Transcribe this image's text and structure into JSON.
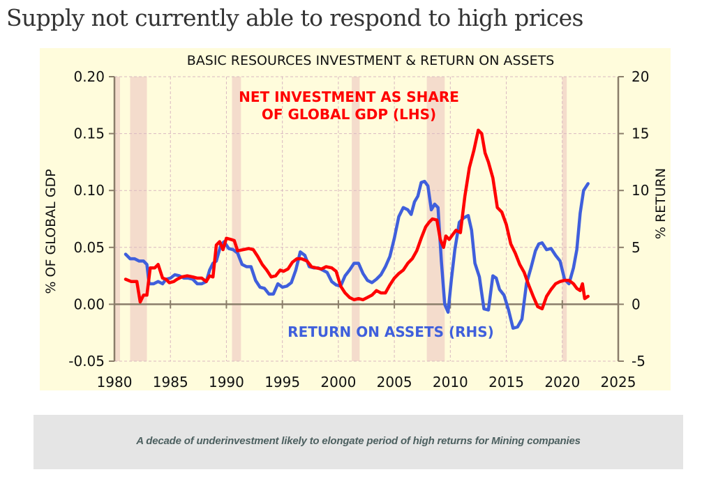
{
  "page": {
    "title": "Supply not currently able to respond to high prices",
    "caption": "A decade of underinvestment likely to elongate period of high returns for Mining companies"
  },
  "colors": {
    "background": "#fffcdc",
    "recession": "#f4dccc",
    "investment": "#ff0000",
    "return": "#3f5fdc",
    "axis": "#8a7d6a",
    "grid": "#d9b8c0",
    "caption_bg": "#e5e5e5",
    "caption_text": "#4d6060"
  },
  "chart_data": {
    "type": "line",
    "title": "BASIC RESOURCES INVESTMENT & RETURN ON ASSETS",
    "xlabel": "",
    "ylabel": "% OF GLOBAL GDP",
    "y2label": "% RETURN",
    "xlim": [
      1980,
      2025
    ],
    "ylim": [
      -0.05,
      0.2
    ],
    "y2lim": [
      -5,
      20
    ],
    "grid": true,
    "xticks": [
      "1980",
      "1985",
      "1990",
      "1995",
      "2000",
      "2005",
      "2010",
      "2015",
      "2020",
      "2025"
    ],
    "xtick_values": [
      1980,
      1985,
      1990,
      1995,
      2000,
      2005,
      2010,
      2015,
      2020,
      2025
    ],
    "yticks": [
      "0.20",
      "0.15",
      "0.10",
      "0.05",
      "0.00",
      "-0.05"
    ],
    "ytick_values": [
      0.2,
      0.15,
      0.1,
      0.05,
      0.0,
      -0.05
    ],
    "y2ticks": [
      "20",
      "15",
      "10",
      "5",
      "0",
      "-5"
    ],
    "y2tick_values": [
      20,
      15,
      10,
      5,
      0,
      -5
    ],
    "recessions": [
      [
        1980.0,
        1980.5
      ],
      [
        1981.4,
        1982.9
      ],
      [
        1990.5,
        1991.3
      ],
      [
        2001.2,
        2001.9
      ],
      [
        2007.9,
        2009.5
      ],
      [
        2020.0,
        2020.4
      ]
    ],
    "annotations": [
      {
        "text": "NET INVESTMENT AS SHARE",
        "series": "investment"
      },
      {
        "text": "OF GLOBAL GDP (LHS)",
        "series": "investment"
      },
      {
        "text": "RETURN ON ASSETS (RHS)",
        "series": "return"
      }
    ],
    "series": [
      {
        "name": "Net investment as share of global GDP (LHS)",
        "axis": "left",
        "color": "#ff0000",
        "x": [
          1981.0,
          1981.5,
          1982.0,
          1982.3,
          1982.6,
          1982.9,
          1983.2,
          1983.6,
          1983.9,
          1984.3,
          1984.6,
          1984.9,
          1985.3,
          1985.6,
          1986.0,
          1986.5,
          1987.0,
          1987.4,
          1987.8,
          1988.2,
          1988.5,
          1988.8,
          1989.1,
          1989.4,
          1989.7,
          1990.0,
          1990.4,
          1990.7,
          1991.0,
          1991.5,
          1992.0,
          1992.4,
          1992.8,
          1993.2,
          1993.6,
          1994.0,
          1994.4,
          1994.8,
          1995.1,
          1995.5,
          1995.9,
          1996.3,
          1996.7,
          1997.2,
          1997.6,
          1998.0,
          1998.5,
          1998.9,
          1999.4,
          1999.8,
          2000.2,
          2000.6,
          2001.0,
          2001.4,
          2001.8,
          2002.2,
          2002.6,
          2003.0,
          2003.4,
          2003.8,
          2004.2,
          2004.6,
          2005.0,
          2005.4,
          2005.8,
          2006.2,
          2006.6,
          2007.0,
          2007.4,
          2007.8,
          2008.1,
          2008.4,
          2008.8,
          2009.1,
          2009.4,
          2009.6,
          2009.9,
          2010.2,
          2010.5,
          2010.9,
          2011.3,
          2011.7,
          2012.1,
          2012.5,
          2012.8,
          2013.1,
          2013.4,
          2013.8,
          2014.2,
          2014.6,
          2015.0,
          2015.4,
          2015.8,
          2016.2,
          2016.6,
          2017.0,
          2017.4,
          2017.8,
          2018.2,
          2018.6,
          2019.0,
          2019.4,
          2019.8,
          2020.2,
          2020.6,
          2021.0,
          2021.3,
          2021.6,
          2021.8,
          2022.0,
          2022.3
        ],
        "values": [
          0.022,
          0.02,
          0.02,
          0.002,
          0.008,
          0.008,
          0.032,
          0.032,
          0.035,
          0.023,
          0.022,
          0.019,
          0.02,
          0.022,
          0.024,
          0.025,
          0.024,
          0.023,
          0.023,
          0.02,
          0.025,
          0.024,
          0.052,
          0.055,
          0.048,
          0.058,
          0.057,
          0.056,
          0.047,
          0.048,
          0.049,
          0.048,
          0.042,
          0.035,
          0.03,
          0.024,
          0.025,
          0.03,
          0.029,
          0.031,
          0.037,
          0.04,
          0.04,
          0.038,
          0.033,
          0.032,
          0.031,
          0.033,
          0.032,
          0.029,
          0.016,
          0.01,
          0.006,
          0.004,
          0.005,
          0.004,
          0.006,
          0.008,
          0.012,
          0.01,
          0.01,
          0.017,
          0.023,
          0.027,
          0.03,
          0.036,
          0.04,
          0.047,
          0.058,
          0.068,
          0.072,
          0.075,
          0.074,
          0.057,
          0.05,
          0.06,
          0.057,
          0.061,
          0.065,
          0.063,
          0.095,
          0.12,
          0.135,
          0.153,
          0.15,
          0.133,
          0.125,
          0.111,
          0.085,
          0.081,
          0.07,
          0.053,
          0.045,
          0.035,
          0.028,
          0.017,
          0.007,
          -0.002,
          -0.004,
          0.007,
          0.013,
          0.018,
          0.02,
          0.021,
          0.021,
          0.018,
          0.014,
          0.012,
          0.018,
          0.005,
          0.007
        ]
      },
      {
        "name": "Return on assets (RHS)",
        "axis": "right",
        "color": "#3f5fdc",
        "x": [
          1981.0,
          1981.4,
          1981.8,
          1982.2,
          1982.6,
          1982.9,
          1983.1,
          1983.5,
          1983.9,
          1984.3,
          1984.6,
          1985.0,
          1985.4,
          1985.8,
          1986.2,
          1986.6,
          1987.0,
          1987.4,
          1987.8,
          1988.2,
          1988.5,
          1988.8,
          1989.1,
          1989.5,
          1989.8,
          1990.2,
          1990.6,
          1991.0,
          1991.4,
          1991.8,
          1992.2,
          1992.6,
          1993.0,
          1993.4,
          1993.8,
          1994.2,
          1994.6,
          1995.0,
          1995.4,
          1995.8,
          1996.2,
          1996.6,
          1997.0,
          1997.4,
          1997.8,
          1998.2,
          1998.6,
          1999.0,
          1999.4,
          1999.8,
          2000.2,
          2000.6,
          2001.0,
          2001.4,
          2001.8,
          2002.2,
          2002.6,
          2003.0,
          2003.4,
          2003.8,
          2004.2,
          2004.6,
          2005.0,
          2005.4,
          2005.8,
          2006.2,
          2006.5,
          2006.8,
          2007.1,
          2007.4,
          2007.7,
          2008.0,
          2008.3,
          2008.6,
          2008.9,
          2009.2,
          2009.5,
          2009.8,
          2010.1,
          2010.4,
          2010.8,
          2011.2,
          2011.6,
          2011.9,
          2012.2,
          2012.6,
          2013.0,
          2013.4,
          2013.8,
          2014.1,
          2014.4,
          2014.8,
          2015.2,
          2015.6,
          2016.0,
          2016.4,
          2016.8,
          2017.2,
          2017.6,
          2017.9,
          2018.2,
          2018.6,
          2019.0,
          2019.4,
          2019.8,
          2020.2,
          2020.6,
          2021.0,
          2021.3,
          2021.6,
          2021.9,
          2022.3
        ],
        "values": [
          4.4,
          4.0,
          4.0,
          3.8,
          3.8,
          3.5,
          1.8,
          1.8,
          2.0,
          1.8,
          2.2,
          2.3,
          2.6,
          2.5,
          2.3,
          2.3,
          2.2,
          1.8,
          1.8,
          2.0,
          3.0,
          3.6,
          3.8,
          5.2,
          5.5,
          4.9,
          4.8,
          4.5,
          3.5,
          3.3,
          3.3,
          2.1,
          1.5,
          1.4,
          0.9,
          0.9,
          1.8,
          1.5,
          1.6,
          1.9,
          3.0,
          4.6,
          4.3,
          3.3,
          3.2,
          3.2,
          3.0,
          2.8,
          2.0,
          1.7,
          1.6,
          2.5,
          3.0,
          3.6,
          3.6,
          2.7,
          2.1,
          1.9,
          2.2,
          2.6,
          3.3,
          4.2,
          5.8,
          7.7,
          8.5,
          8.3,
          7.9,
          9.0,
          9.5,
          10.7,
          10.8,
          10.4,
          8.3,
          8.8,
          8.5,
          3.8,
          0.0,
          -0.7,
          2.2,
          4.8,
          7.2,
          7.6,
          7.8,
          6.5,
          3.6,
          2.4,
          -0.4,
          -0.5,
          2.5,
          2.3,
          1.3,
          0.8,
          -0.5,
          -2.1,
          -2.0,
          -1.3,
          1.8,
          3.2,
          4.7,
          5.3,
          5.4,
          4.8,
          4.9,
          4.3,
          3.8,
          2.2,
          1.8,
          3.2,
          4.8,
          8.0,
          10.0,
          10.6
        ]
      }
    ]
  }
}
